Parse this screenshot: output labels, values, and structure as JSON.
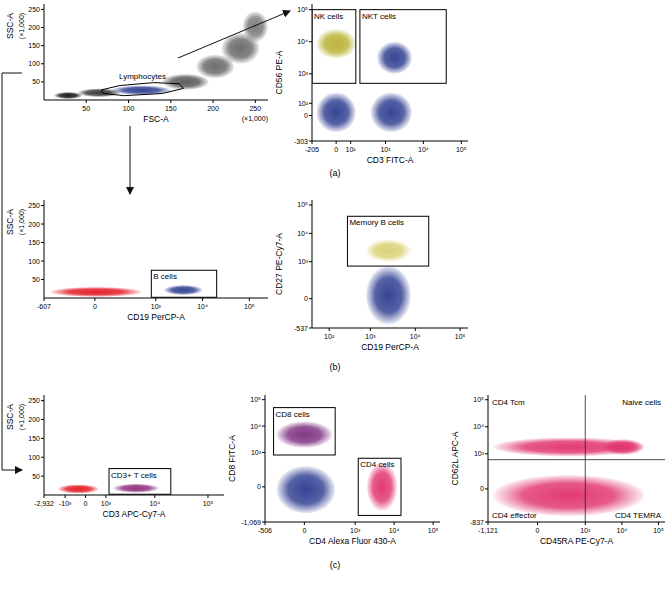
{
  "panels": [
    "(a)",
    "(b)",
    "(c)"
  ],
  "chart_data": [
    {
      "type": "scatter",
      "xlabel": "FSC-A",
      "ylabel": "SSC-A",
      "x_multiplier": "(×1,000)",
      "y_multiplier": "(×1,000)",
      "xlim": [
        0,
        265
      ],
      "ylim": [
        0,
        265
      ],
      "xticks": [
        50,
        100,
        150,
        200,
        250
      ],
      "yticks": [
        50,
        100,
        150,
        200,
        250
      ],
      "populations": [
        {
          "x": [
            12,
            45
          ],
          "y": [
            3,
            22
          ],
          "color": "#111111"
        },
        {
          "x": [
            40,
            90
          ],
          "y": [
            8,
            32
          ],
          "color": "#333333"
        },
        {
          "x": [
            80,
            150
          ],
          "y": [
            14,
            40
          ],
          "color": "#2b3b8f"
        },
        {
          "x": [
            140,
            195
          ],
          "y": [
            28,
            72
          ],
          "color": "#555555"
        },
        {
          "x": [
            180,
            225
          ],
          "y": [
            60,
            125
          ],
          "color": "#666666"
        },
        {
          "x": [
            210,
            255
          ],
          "y": [
            100,
            185
          ],
          "color": "#666666"
        },
        {
          "x": [
            235,
            265
          ],
          "y": [
            160,
            245
          ],
          "color": "#777777"
        }
      ],
      "polygon_gates": [
        {
          "label": "Lymphocytes",
          "points": [
            [
              70,
              18
            ],
            [
              95,
              12
            ],
            [
              140,
              18
            ],
            [
              165,
              32
            ],
            [
              160,
              45
            ],
            [
              130,
              48
            ],
            [
              90,
              40
            ],
            [
              68,
              28
            ]
          ]
        }
      ]
    },
    {
      "type": "scatter",
      "xlabel": "CD3 FITC-A",
      "ylabel": "CD56 PE-A",
      "log": true,
      "xlim": [
        -205,
        150000
      ],
      "ylim": [
        -303,
        150000
      ],
      "xticks": [
        -205,
        0,
        {
          "value": 100,
          "label": "10²"
        },
        {
          "value": 1000,
          "label": "10³"
        },
        {
          "value": 10000,
          "label": "10⁴"
        },
        {
          "value": 100000,
          "label": "10⁵"
        }
      ],
      "yticks": [
        -303,
        0,
        {
          "value": 100,
          "label": "10²"
        },
        {
          "value": 1000,
          "label": "10³"
        },
        {
          "value": 10000,
          "label": "10⁴"
        },
        {
          "value": 100000,
          "label": "10⁵"
        }
      ],
      "populations": [
        {
          "x": [
            -150,
            150
          ],
          "y": [
            3000,
            25000
          ],
          "color": "#b8b030"
        },
        {
          "x": [
            600,
            5000
          ],
          "y": [
            1000,
            10000
          ],
          "color": "#2b3b8f"
        },
        {
          "x": [
            400,
            5000
          ],
          "y": [
            -150,
            250
          ],
          "color": "#2b3b8f"
        },
        {
          "x": [
            -150,
            150
          ],
          "y": [
            -150,
            250
          ],
          "color": "#2b3b8f"
        }
      ],
      "gates": [
        {
          "label": "NK cells",
          "x": [
            -205,
            150
          ],
          "y": [
            500,
            100000
          ]
        },
        {
          "label": "NKT cells",
          "x": [
            200,
            40000
          ],
          "y": [
            500,
            100000
          ]
        }
      ]
    },
    {
      "type": "scatter",
      "xlabel": "CD19 PerCP-A",
      "ylabel": "SSC-A",
      "y_multiplier": "(×1,000)",
      "log": "x",
      "xlim": [
        -607,
        250000
      ],
      "ylim": [
        0,
        265
      ],
      "xticks": [
        -607,
        0,
        {
          "value": 1000,
          "label": "10³"
        },
        {
          "value": 10000,
          "label": "10⁴"
        },
        {
          "value": 100000,
          "label": "10⁵"
        }
      ],
      "yticks": [
        50,
        100,
        150,
        200,
        250
      ],
      "populations": [
        {
          "x": [
            -450,
            500
          ],
          "y": [
            3,
            30
          ],
          "color": "#e3151f"
        },
        {
          "x": [
            1500,
            10000
          ],
          "y": [
            8,
            35
          ],
          "color": "#2b3b8f"
        }
      ],
      "gates": [
        {
          "label": "B cells",
          "x": [
            800,
            20000
          ],
          "y": [
            2,
            75
          ]
        }
      ]
    },
    {
      "type": "scatter",
      "xlabel": "CD19 PerCP-A",
      "ylabel": "CD27 PE-Cy7-A",
      "log": true,
      "xlim": [
        0,
        150000
      ],
      "ylim": [
        -537,
        150000
      ],
      "xticks": [
        {
          "value": 100,
          "label": "10²"
        },
        {
          "value": 1000,
          "label": "10³"
        },
        {
          "value": 10000,
          "label": "10⁴"
        },
        {
          "value": 100000,
          "label": "10⁵"
        }
      ],
      "yticks": [
        -537,
        0,
        {
          "value": 1000,
          "label": "10³"
        },
        {
          "value": 10000,
          "label": "10⁴"
        },
        {
          "value": 100000,
          "label": "10⁵"
        }
      ],
      "populations": [
        {
          "x": [
            800,
            8000
          ],
          "y": [
            -400,
            700
          ],
          "color": "#2b3b8f"
        },
        {
          "x": [
            800,
            8000
          ],
          "y": [
            1000,
            6000
          ],
          "color": "#d8d070"
        }
      ],
      "gates": [
        {
          "label": "Memory B cells",
          "x": [
            300,
            20000
          ],
          "y": [
            700,
            40000
          ]
        }
      ]
    },
    {
      "type": "scatter",
      "xlabel": "CD3 APC-Cy7-A",
      "ylabel": "SSC-A",
      "y_multiplier": "(×1,000)",
      "log": "x",
      "xlim": [
        -2932,
        200000
      ],
      "ylim": [
        0,
        265
      ],
      "xticks": [
        {
          "value": -2932,
          "label": "-2,932"
        },
        {
          "value": -1000,
          "label": "-10³"
        },
        0,
        {
          "value": 1000,
          "label": "10³"
        },
        {
          "value": 10000,
          "label": "10⁴"
        },
        {
          "value": 100000,
          "label": "10⁵"
        }
      ],
      "yticks": [
        50,
        100,
        150,
        200,
        250
      ],
      "populations": [
        {
          "x": [
            -1500,
            600
          ],
          "y": [
            4,
            28
          ],
          "color": "#e3151f"
        },
        {
          "x": [
            1500,
            12000
          ],
          "y": [
            6,
            30
          ],
          "color": "#8a2a7a"
        }
      ],
      "gates": [
        {
          "label": "CD3+ T cells",
          "x": [
            1200,
            20000
          ],
          "y": [
            2,
            70
          ]
        }
      ]
    },
    {
      "type": "scatter",
      "xlabel": "CD4 Alexa Fluor 430-A",
      "ylabel": "CD8 FITC-A",
      "log": true,
      "xlim": [
        -506,
        150000
      ],
      "ylim": [
        -1069,
        150000
      ],
      "xticks": [
        -506,
        0,
        {
          "value": 1000,
          "label": "10³"
        },
        {
          "value": 10000,
          "label": "10⁴"
        },
        {
          "value": 100000,
          "label": "10⁵"
        }
      ],
      "yticks": [
        {
          "value": -1069,
          "label": "-1,069"
        },
        0,
        {
          "value": 1000,
          "label": "10³"
        },
        {
          "value": 10000,
          "label": "10⁴"
        },
        {
          "value": 100000,
          "label": "10⁵"
        }
      ],
      "populations": [
        {
          "x": [
            -250,
            250
          ],
          "y": [
            1500,
            15000
          ],
          "color": "#7b2d7e"
        },
        {
          "x": [
            -250,
            300
          ],
          "y": [
            -500,
            300
          ],
          "color": "#2b3b8f"
        },
        {
          "x": [
            2000,
            12000
          ],
          "y": [
            -400,
            400
          ],
          "color": "#e0306a"
        }
      ],
      "gates": [
        {
          "label": "CD8 cells",
          "x": [
            -300,
            300
          ],
          "y": [
            800,
            50000
          ]
        },
        {
          "label": "CD4 cells",
          "x": [
            1200,
            15000
          ],
          "y": [
            -600,
            600
          ]
        }
      ]
    },
    {
      "type": "scatter",
      "xlabel": "CD45RA PE-Cy7-A",
      "ylabel": "CD62L APC-A",
      "log": true,
      "xlim": [
        -1121,
        150000
      ],
      "ylim": [
        -837,
        150000
      ],
      "xticks": [
        {
          "value": -1121,
          "label": "-1,121"
        },
        0,
        {
          "value": 1000,
          "label": "10³"
        },
        {
          "value": 10000,
          "label": "10⁴"
        },
        {
          "value": 100000,
          "label": "10⁵"
        }
      ],
      "yticks": [
        -837,
        0,
        {
          "value": 1000,
          "label": "10³"
        },
        {
          "value": 10000,
          "label": "10⁴"
        },
        {
          "value": 100000,
          "label": "10⁵"
        }
      ],
      "populations": [
        {
          "x": [
            -800,
            40000
          ],
          "y": [
            800,
            4000
          ],
          "color": "#e0306a"
        },
        {
          "x": [
            3000,
            40000
          ],
          "y": [
            900,
            3500
          ],
          "color": "#e0306a"
        },
        {
          "x": [
            -800,
            40000
          ],
          "y": [
            -500,
            150
          ],
          "color": "#e0306a"
        }
      ],
      "quadrants": {
        "x": 1000,
        "y": 600,
        "labels": [
          "CD4 Tcm",
          "Naive cells",
          "CD4 effector",
          "CD4 TEMRA"
        ]
      }
    }
  ]
}
